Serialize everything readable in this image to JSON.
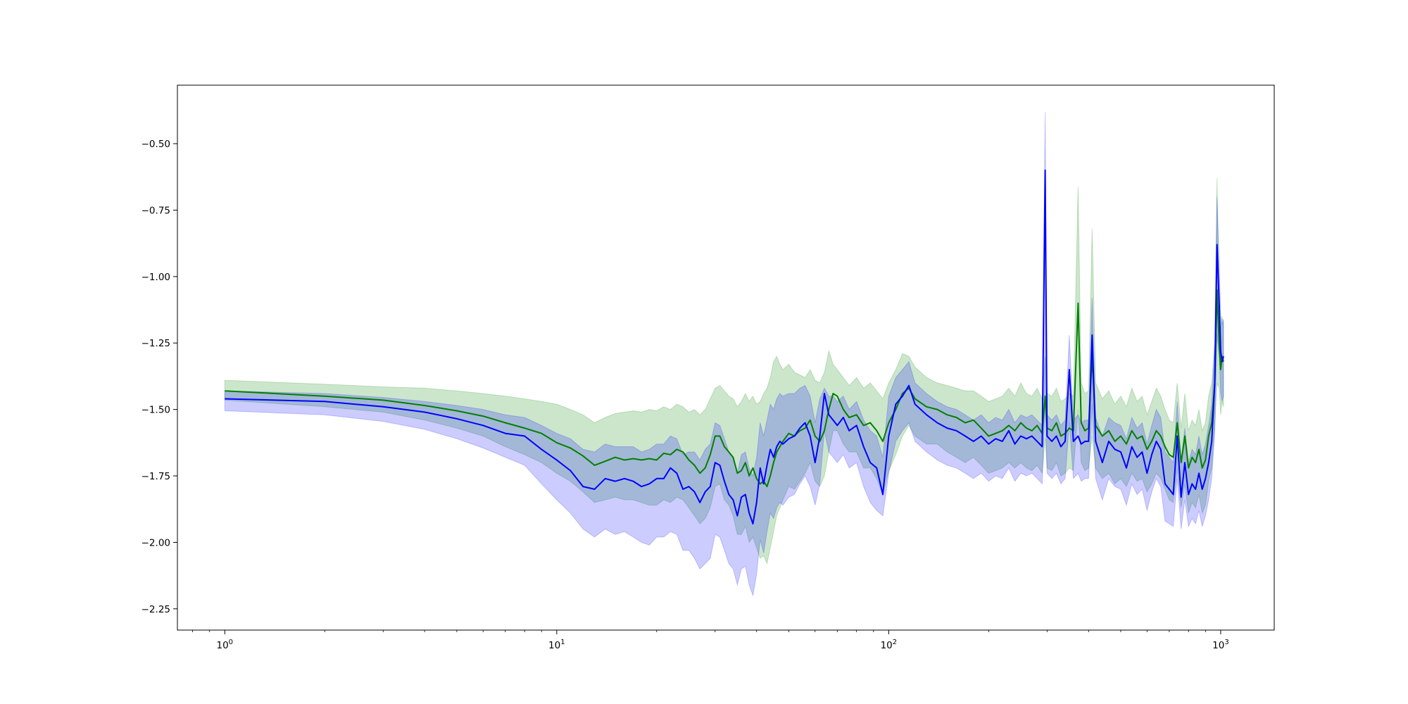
{
  "chart_data": {
    "type": "line",
    "title": "",
    "xlabel": "",
    "ylabel": "",
    "xscale": "log",
    "xlim": [
      0.72,
      1450
    ],
    "ylim": [
      -2.33,
      -0.28
    ],
    "grid": false,
    "legend": "none",
    "x_ticks": [
      {
        "value": 1,
        "base": "10",
        "exp": "0"
      },
      {
        "value": 10,
        "base": "10",
        "exp": "1"
      },
      {
        "value": 100,
        "base": "10",
        "exp": "2"
      },
      {
        "value": 1000,
        "base": "10",
        "exp": "3"
      }
    ],
    "y_ticks": [
      {
        "value": -0.5,
        "label": "−0.50"
      },
      {
        "value": -0.75,
        "label": "−0.75"
      },
      {
        "value": -1.0,
        "label": "−1.00"
      },
      {
        "value": -1.25,
        "label": "−1.25"
      },
      {
        "value": -1.5,
        "label": "−1.50"
      },
      {
        "value": -1.75,
        "label": "−1.75"
      },
      {
        "value": -2.0,
        "label": "−2.00"
      },
      {
        "value": -2.25,
        "label": "−2.25"
      }
    ],
    "series": [
      {
        "color": "#008000",
        "band_color": "#008000",
        "band_opacity": 0.2,
        "x": [
          1,
          2,
          3,
          4,
          5,
          6,
          7,
          8,
          9,
          10,
          11,
          12,
          13,
          14,
          15,
          16,
          17,
          18,
          19,
          20,
          21,
          22,
          23,
          24,
          25,
          26,
          27,
          28,
          29,
          30,
          31,
          32,
          33,
          34,
          35,
          36,
          37,
          38,
          39,
          40,
          41,
          42,
          43,
          44,
          45,
          46,
          47,
          48,
          50,
          52,
          54,
          56,
          58,
          60,
          62,
          64,
          66,
          68,
          70,
          73,
          76,
          80,
          84,
          88,
          92,
          96,
          100,
          105,
          110,
          115,
          120,
          130,
          140,
          150,
          160,
          170,
          180,
          190,
          200,
          210,
          220,
          230,
          240,
          250,
          260,
          270,
          280,
          290,
          296,
          300,
          310,
          320,
          330,
          340,
          350,
          360,
          372,
          380,
          390,
          400,
          410,
          420,
          440,
          460,
          480,
          500,
          520,
          540,
          560,
          580,
          600,
          620,
          640,
          660,
          680,
          700,
          720,
          740,
          760,
          780,
          800,
          820,
          840,
          860,
          880,
          900,
          920,
          940,
          960,
          975,
          990,
          1000,
          1010,
          1020
        ],
        "y": [
          -1.43,
          -1.45,
          -1.465,
          -1.485,
          -1.505,
          -1.525,
          -1.55,
          -1.57,
          -1.59,
          -1.625,
          -1.645,
          -1.675,
          -1.71,
          -1.695,
          -1.68,
          -1.69,
          -1.685,
          -1.69,
          -1.685,
          -1.69,
          -1.665,
          -1.67,
          -1.65,
          -1.66,
          -1.69,
          -1.71,
          -1.74,
          -1.72,
          -1.67,
          -1.6,
          -1.6,
          -1.64,
          -1.66,
          -1.68,
          -1.74,
          -1.73,
          -1.7,
          -1.75,
          -1.72,
          -1.76,
          -1.78,
          -1.77,
          -1.79,
          -1.75,
          -1.7,
          -1.66,
          -1.64,
          -1.62,
          -1.59,
          -1.6,
          -1.58,
          -1.57,
          -1.54,
          -1.6,
          -1.62,
          -1.58,
          -1.5,
          -1.44,
          -1.45,
          -1.5,
          -1.53,
          -1.52,
          -1.56,
          -1.55,
          -1.58,
          -1.62,
          -1.55,
          -1.5,
          -1.44,
          -1.42,
          -1.46,
          -1.49,
          -1.5,
          -1.52,
          -1.53,
          -1.55,
          -1.54,
          -1.57,
          -1.6,
          -1.59,
          -1.58,
          -1.56,
          -1.58,
          -1.55,
          -1.57,
          -1.58,
          -1.56,
          -1.59,
          -1.45,
          -1.57,
          -1.58,
          -1.55,
          -1.6,
          -1.59,
          -1.57,
          -1.58,
          -1.1,
          -1.55,
          -1.58,
          -1.57,
          -1.3,
          -1.56,
          -1.6,
          -1.58,
          -1.62,
          -1.6,
          -1.63,
          -1.58,
          -1.61,
          -1.6,
          -1.65,
          -1.62,
          -1.58,
          -1.6,
          -1.64,
          -1.67,
          -1.68,
          -1.55,
          -1.7,
          -1.6,
          -1.72,
          -1.68,
          -1.7,
          -1.65,
          -1.72,
          -1.69,
          -1.6,
          -1.55,
          -1.4,
          -1.05,
          -1.25,
          -1.35,
          -1.3,
          -1.32
        ],
        "upper": [
          -1.39,
          -1.405,
          -1.415,
          -1.42,
          -1.43,
          -1.44,
          -1.45,
          -1.46,
          -1.47,
          -1.48,
          -1.5,
          -1.52,
          -1.55,
          -1.53,
          -1.515,
          -1.51,
          -1.505,
          -1.51,
          -1.5,
          -1.505,
          -1.49,
          -1.5,
          -1.48,
          -1.49,
          -1.51,
          -1.5,
          -1.52,
          -1.5,
          -1.46,
          -1.42,
          -1.41,
          -1.43,
          -1.45,
          -1.46,
          -1.49,
          -1.47,
          -1.44,
          -1.47,
          -1.45,
          -1.48,
          -1.47,
          -1.44,
          -1.42,
          -1.38,
          -1.32,
          -1.3,
          -1.33,
          -1.35,
          -1.33,
          -1.36,
          -1.37,
          -1.38,
          -1.35,
          -1.39,
          -1.4,
          -1.36,
          -1.28,
          -1.33,
          -1.35,
          -1.38,
          -1.41,
          -1.38,
          -1.42,
          -1.4,
          -1.43,
          -1.46,
          -1.4,
          -1.35,
          -1.29,
          -1.3,
          -1.34,
          -1.38,
          -1.4,
          -1.41,
          -1.42,
          -1.43,
          -1.43,
          -1.45,
          -1.47,
          -1.46,
          -1.45,
          -1.42,
          -1.45,
          -1.4,
          -1.44,
          -1.45,
          -1.42,
          -1.46,
          -1.3,
          -1.44,
          -1.45,
          -1.42,
          -1.47,
          -1.46,
          -1.44,
          -1.45,
          -0.66,
          -1.4,
          -1.44,
          -1.43,
          -0.82,
          -1.4,
          -1.46,
          -1.43,
          -1.48,
          -1.45,
          -1.49,
          -1.42,
          -1.47,
          -1.45,
          -1.52,
          -1.47,
          -1.42,
          -1.45,
          -1.5,
          -1.54,
          -1.55,
          -1.4,
          -1.57,
          -1.44,
          -1.58,
          -1.54,
          -1.56,
          -1.5,
          -1.58,
          -1.55,
          -1.45,
          -1.4,
          -1.25,
          -0.63,
          -1.1,
          -1.2,
          -1.15,
          -1.18
        ],
        "lower": [
          -1.465,
          -1.49,
          -1.51,
          -1.54,
          -1.57,
          -1.6,
          -1.64,
          -1.67,
          -1.7,
          -1.74,
          -1.77,
          -1.81,
          -1.85,
          -1.84,
          -1.83,
          -1.84,
          -1.84,
          -1.85,
          -1.86,
          -1.86,
          -1.84,
          -1.85,
          -1.83,
          -1.84,
          -1.87,
          -1.9,
          -1.93,
          -1.91,
          -1.87,
          -1.79,
          -1.78,
          -1.84,
          -1.86,
          -1.9,
          -1.97,
          -1.97,
          -1.94,
          -2.0,
          -1.98,
          -2.02,
          -2.06,
          -2.05,
          -2.08,
          -2.02,
          -1.96,
          -1.9,
          -1.87,
          -1.84,
          -1.79,
          -1.8,
          -1.77,
          -1.74,
          -1.7,
          -1.77,
          -1.79,
          -1.75,
          -1.66,
          -1.58,
          -1.58,
          -1.63,
          -1.66,
          -1.66,
          -1.72,
          -1.72,
          -1.76,
          -1.82,
          -1.73,
          -1.67,
          -1.6,
          -1.56,
          -1.6,
          -1.63,
          -1.63,
          -1.66,
          -1.68,
          -1.7,
          -1.68,
          -1.71,
          -1.74,
          -1.73,
          -1.72,
          -1.7,
          -1.72,
          -1.7,
          -1.72,
          -1.73,
          -1.71,
          -1.74,
          -1.61,
          -1.72,
          -1.73,
          -1.7,
          -1.75,
          -1.74,
          -1.72,
          -1.73,
          -1.5,
          -1.7,
          -1.73,
          -1.72,
          -1.6,
          -1.72,
          -1.76,
          -1.74,
          -1.78,
          -1.76,
          -1.79,
          -1.74,
          -1.77,
          -1.76,
          -1.81,
          -1.78,
          -1.74,
          -1.76,
          -1.8,
          -1.84,
          -1.85,
          -1.72,
          -1.87,
          -1.78,
          -1.89,
          -1.85,
          -1.87,
          -1.82,
          -1.89,
          -1.86,
          -1.77,
          -1.72,
          -1.57,
          -1.4,
          -1.42,
          -1.52,
          -1.47,
          -1.49
        ]
      },
      {
        "color": "#0000ff",
        "band_color": "#0000ff",
        "band_opacity": 0.2,
        "x": [
          1,
          2,
          3,
          4,
          5,
          6,
          7,
          8,
          9,
          10,
          11,
          12,
          13,
          14,
          15,
          16,
          17,
          18,
          19,
          20,
          21,
          22,
          23,
          24,
          25,
          26,
          27,
          28,
          29,
          30,
          31,
          32,
          33,
          34,
          35,
          36,
          37,
          38,
          39,
          40,
          41,
          42,
          43,
          44,
          45,
          46,
          47,
          48,
          50,
          52,
          54,
          56,
          58,
          60,
          62,
          64,
          66,
          68,
          70,
          73,
          76,
          80,
          84,
          88,
          92,
          96,
          100,
          105,
          110,
          115,
          120,
          130,
          140,
          150,
          160,
          170,
          180,
          190,
          200,
          210,
          220,
          230,
          240,
          250,
          260,
          270,
          280,
          290,
          296,
          300,
          310,
          320,
          330,
          340,
          350,
          360,
          372,
          380,
          390,
          400,
          410,
          420,
          440,
          460,
          480,
          500,
          520,
          540,
          560,
          580,
          600,
          620,
          640,
          660,
          680,
          700,
          720,
          740,
          760,
          780,
          800,
          820,
          840,
          860,
          880,
          900,
          920,
          940,
          960,
          975,
          990,
          1000,
          1010,
          1020
        ],
        "y": [
          -1.46,
          -1.47,
          -1.49,
          -1.51,
          -1.535,
          -1.56,
          -1.59,
          -1.6,
          -1.65,
          -1.69,
          -1.73,
          -1.79,
          -1.8,
          -1.76,
          -1.77,
          -1.76,
          -1.77,
          -1.79,
          -1.78,
          -1.76,
          -1.76,
          -1.72,
          -1.74,
          -1.8,
          -1.79,
          -1.81,
          -1.85,
          -1.81,
          -1.79,
          -1.7,
          -1.71,
          -1.77,
          -1.82,
          -1.84,
          -1.9,
          -1.83,
          -1.82,
          -1.89,
          -1.93,
          -1.85,
          -1.72,
          -1.78,
          -1.71,
          -1.65,
          -1.68,
          -1.64,
          -1.62,
          -1.63,
          -1.61,
          -1.6,
          -1.57,
          -1.55,
          -1.6,
          -1.7,
          -1.6,
          -1.44,
          -1.52,
          -1.54,
          -1.56,
          -1.53,
          -1.58,
          -1.56,
          -1.64,
          -1.7,
          -1.72,
          -1.82,
          -1.6,
          -1.48,
          -1.45,
          -1.41,
          -1.48,
          -1.52,
          -1.55,
          -1.57,
          -1.58,
          -1.6,
          -1.62,
          -1.6,
          -1.63,
          -1.61,
          -1.62,
          -1.58,
          -1.63,
          -1.6,
          -1.61,
          -1.6,
          -1.62,
          -1.64,
          -0.6,
          -1.6,
          -1.62,
          -1.6,
          -1.64,
          -1.62,
          -1.35,
          -1.62,
          -1.6,
          -1.63,
          -1.62,
          -1.62,
          -1.22,
          -1.62,
          -1.7,
          -1.62,
          -1.65,
          -1.66,
          -1.72,
          -1.64,
          -1.68,
          -1.66,
          -1.74,
          -1.67,
          -1.62,
          -1.65,
          -1.78,
          -1.8,
          -1.82,
          -1.6,
          -1.83,
          -1.7,
          -1.82,
          -1.78,
          -1.8,
          -1.74,
          -1.8,
          -1.76,
          -1.7,
          -1.62,
          -1.4,
          -0.88,
          -1.1,
          -1.28,
          -1.32,
          -1.3
        ],
        "upper": [
          -1.43,
          -1.44,
          -1.455,
          -1.47,
          -1.485,
          -1.5,
          -1.52,
          -1.53,
          -1.56,
          -1.59,
          -1.61,
          -1.65,
          -1.66,
          -1.63,
          -1.64,
          -1.64,
          -1.64,
          -1.66,
          -1.65,
          -1.63,
          -1.63,
          -1.6,
          -1.61,
          -1.67,
          -1.66,
          -1.66,
          -1.69,
          -1.65,
          -1.63,
          -1.55,
          -1.56,
          -1.61,
          -1.66,
          -1.68,
          -1.74,
          -1.67,
          -1.66,
          -1.72,
          -1.75,
          -1.68,
          -1.55,
          -1.6,
          -1.54,
          -1.48,
          -1.5,
          -1.46,
          -1.44,
          -1.45,
          -1.44,
          -1.44,
          -1.42,
          -1.41,
          -1.45,
          -1.55,
          -1.46,
          -1.42,
          -1.45,
          -1.45,
          -1.47,
          -1.45,
          -1.5,
          -1.47,
          -1.54,
          -1.58,
          -1.6,
          -1.68,
          -1.45,
          -1.38,
          -1.35,
          -1.32,
          -1.4,
          -1.44,
          -1.47,
          -1.49,
          -1.5,
          -1.52,
          -1.54,
          -1.52,
          -1.55,
          -1.53,
          -1.54,
          -1.5,
          -1.55,
          -1.52,
          -1.53,
          -1.52,
          -1.54,
          -1.56,
          -0.38,
          -1.52,
          -1.54,
          -1.52,
          -1.56,
          -1.54,
          -1.22,
          -1.54,
          -1.52,
          -1.55,
          -1.54,
          -1.54,
          -1.08,
          -1.53,
          -1.6,
          -1.53,
          -1.55,
          -1.56,
          -1.61,
          -1.53,
          -1.57,
          -1.55,
          -1.63,
          -1.56,
          -1.5,
          -1.53,
          -1.66,
          -1.68,
          -1.7,
          -1.47,
          -1.7,
          -1.57,
          -1.7,
          -1.65,
          -1.67,
          -1.6,
          -1.67,
          -1.63,
          -1.56,
          -1.48,
          -1.25,
          -0.7,
          -0.95,
          -1.15,
          -1.18,
          -1.16
        ],
        "lower": [
          -1.505,
          -1.52,
          -1.545,
          -1.575,
          -1.61,
          -1.645,
          -1.68,
          -1.71,
          -1.78,
          -1.84,
          -1.89,
          -1.95,
          -1.98,
          -1.95,
          -1.97,
          -1.96,
          -1.98,
          -2.0,
          -2.01,
          -1.98,
          -1.98,
          -1.96,
          -1.97,
          -2.03,
          -2.03,
          -2.06,
          -2.1,
          -2.08,
          -2.06,
          -1.97,
          -1.98,
          -2.03,
          -2.08,
          -2.1,
          -2.16,
          -2.1,
          -2.09,
          -2.16,
          -2.2,
          -2.12,
          -1.99,
          -2.04,
          -1.96,
          -1.89,
          -1.91,
          -1.87,
          -1.85,
          -1.86,
          -1.83,
          -1.82,
          -1.78,
          -1.75,
          -1.79,
          -1.86,
          -1.78,
          -1.58,
          -1.66,
          -1.68,
          -1.7,
          -1.67,
          -1.72,
          -1.7,
          -1.79,
          -1.85,
          -1.88,
          -1.9,
          -1.74,
          -1.62,
          -1.58,
          -1.55,
          -1.62,
          -1.66,
          -1.69,
          -1.71,
          -1.72,
          -1.74,
          -1.76,
          -1.74,
          -1.77,
          -1.75,
          -1.76,
          -1.72,
          -1.77,
          -1.74,
          -1.75,
          -1.74,
          -1.76,
          -1.78,
          -1.45,
          -1.74,
          -1.76,
          -1.74,
          -1.78,
          -1.76,
          -1.55,
          -1.76,
          -1.74,
          -1.77,
          -1.76,
          -1.76,
          -1.48,
          -1.76,
          -1.84,
          -1.76,
          -1.79,
          -1.8,
          -1.86,
          -1.78,
          -1.82,
          -1.8,
          -1.88,
          -1.81,
          -1.76,
          -1.79,
          -1.92,
          -1.93,
          -1.94,
          -1.76,
          -1.95,
          -1.84,
          -1.94,
          -1.91,
          -1.93,
          -1.88,
          -1.94,
          -1.9,
          -1.84,
          -1.76,
          -1.58,
          -1.22,
          -1.3,
          -1.44,
          -1.47,
          -1.45
        ]
      }
    ]
  }
}
